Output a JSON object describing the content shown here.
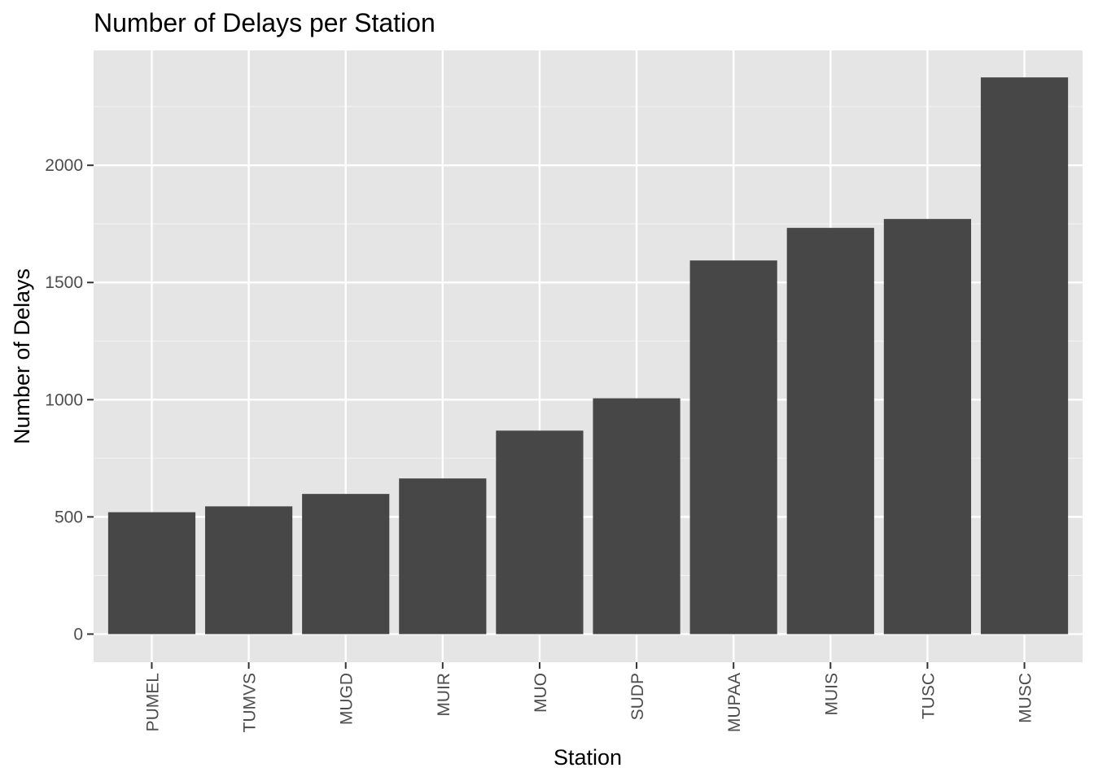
{
  "chart_data": {
    "type": "bar",
    "title": "Number of Delays per Station",
    "xlabel": "Station",
    "ylabel": "Number of Delays",
    "categories": [
      "PUMEL",
      "TUMVS",
      "MUGD",
      "MUIR",
      "MUO",
      "SUDP",
      "MUPAA",
      "MUIS",
      "TUSC",
      "MUSC"
    ],
    "values": [
      520,
      545,
      598,
      664,
      868,
      1006,
      1594,
      1733,
      1771,
      2375
    ],
    "ylim": [
      -120,
      2490
    ],
    "yticks": [
      0,
      500,
      1000,
      1500,
      2000
    ],
    "grid": true,
    "legend": "none",
    "colors": {
      "bar": "#474747",
      "panel": "#e5e5e5",
      "grid_major": "#ffffff",
      "grid_minor": "#f2f2f2",
      "tick": "#333333"
    }
  }
}
